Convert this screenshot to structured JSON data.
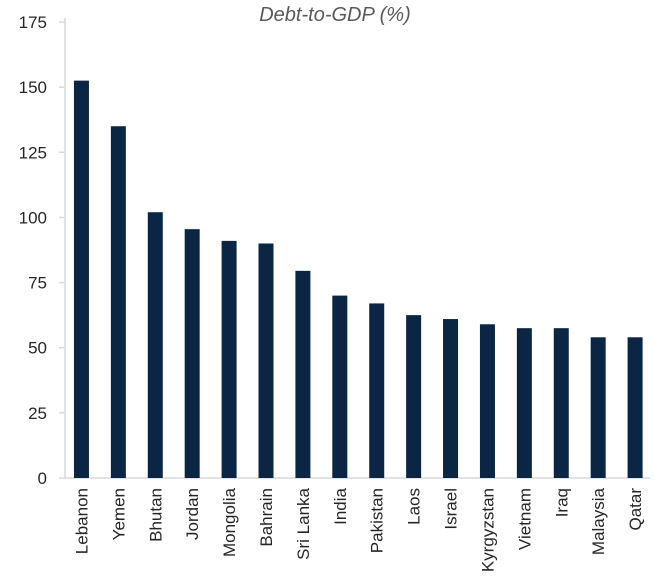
{
  "chart_data": {
    "type": "bar",
    "title": "Debt-to-GDP (%)",
    "xlabel": "",
    "ylabel": "",
    "categories": [
      "Lebanon",
      "Yemen",
      "Bhutan",
      "Jordan",
      "Mongolia",
      "Bahrain",
      "Sri Lanka",
      "India",
      "Pakistan",
      "Laos",
      "Israel",
      "Kyrgyzstan",
      "Vietnam",
      "Iraq",
      "Malaysia",
      "Qatar"
    ],
    "values": [
      152.5,
      135,
      102,
      95.5,
      91,
      90,
      79.5,
      70,
      67,
      62.5,
      61,
      59,
      57.5,
      57.5,
      54,
      54
    ],
    "ylim": [
      0,
      175
    ],
    "yticks": [
      "0",
      "25",
      "50",
      "75",
      "100",
      "125",
      "150",
      "175"
    ],
    "grid": false,
    "legend": "none",
    "bar_color": "#0b2545",
    "axis_color": "#d9d9d9"
  }
}
